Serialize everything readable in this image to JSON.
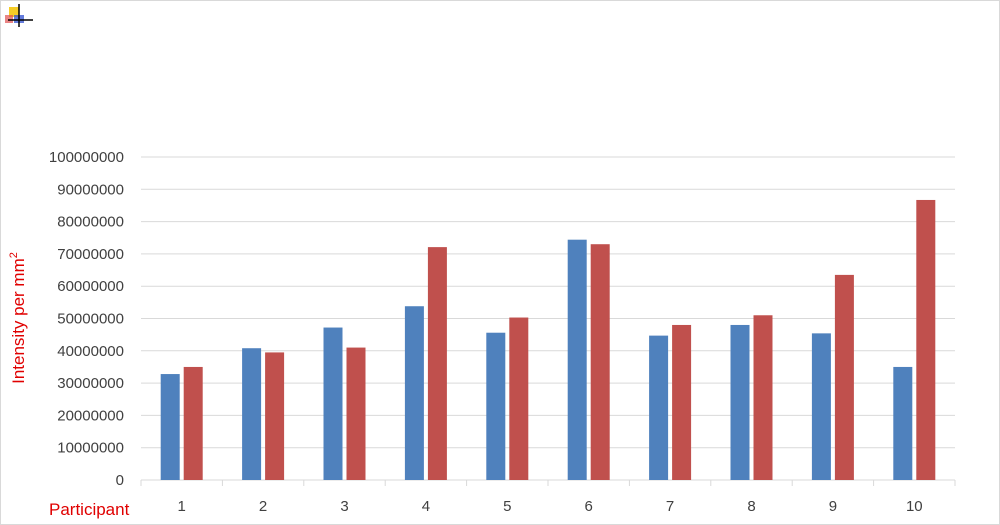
{
  "chart_data": {
    "type": "bar",
    "xlabel": "Participant",
    "ylabel": {
      "text": "Intensity per mm",
      "superscript": "2"
    },
    "categories": [
      "1",
      "2",
      "3",
      "4",
      "5",
      "6",
      "7",
      "8",
      "9",
      "10"
    ],
    "series": [
      {
        "values": [
          32800000,
          40800000,
          47200000,
          53800000,
          45600000,
          74400000,
          44700000,
          48000000,
          45400000,
          35000000
        ]
      },
      {
        "values": [
          35000000,
          39500000,
          41000000,
          72100000,
          50300000,
          73000000,
          48000000,
          51000000,
          63500000,
          86700000
        ]
      }
    ],
    "ylim": [
      0,
      100000000
    ],
    "yticks": [
      "0",
      "10000000",
      "20000000",
      "30000000",
      "40000000",
      "50000000",
      "60000000",
      "70000000",
      "80000000",
      "90000000",
      "100000000"
    ],
    "grid": true,
    "legend": "none"
  },
  "colors": {
    "series": [
      "#4f81bd",
      "#c0504d"
    ],
    "gridline": "#d9d9d9",
    "axis_title": "#e00000",
    "tick_text": "#404040"
  },
  "icons": {
    "corner": "app-icon"
  }
}
